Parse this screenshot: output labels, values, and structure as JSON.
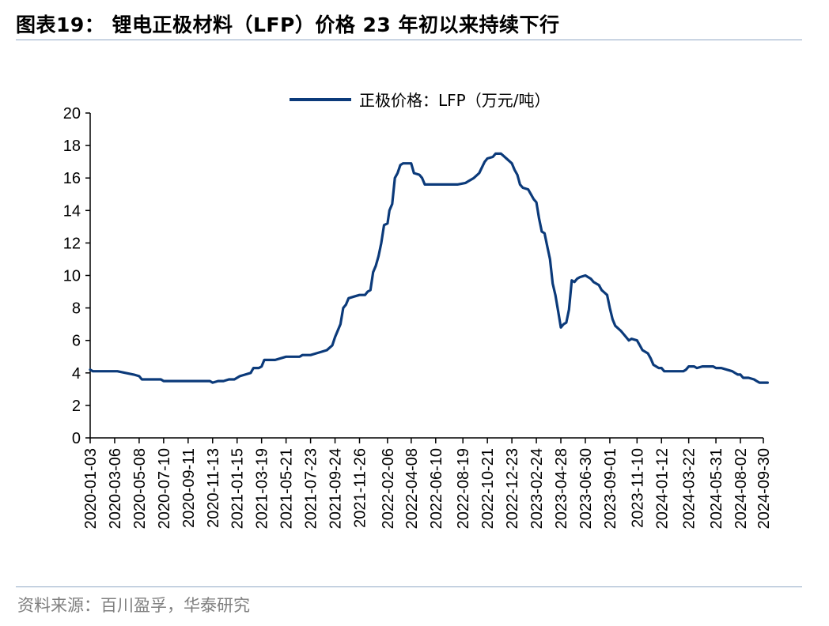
{
  "title": "图表19： 锂电正极材料（LFP）价格 23 年初以来持续下行",
  "source": "资料来源：百川盈孚，华泰研究",
  "colors": {
    "line": "#0b3a7a",
    "axis": "#000000",
    "rule": "#8fa7c4"
  },
  "chart_data": {
    "type": "line",
    "title": "",
    "xlabel": "",
    "ylabel": "",
    "ylim": [
      0,
      20
    ],
    "yticks": [
      0,
      2,
      4,
      6,
      8,
      10,
      12,
      14,
      16,
      18,
      20
    ],
    "grid": false,
    "legend_position": "top-center",
    "x_tick_labels": [
      "2020-01-03",
      "2020-03-06",
      "2020-05-08",
      "2020-07-10",
      "2020-09-11",
      "2020-11-13",
      "2021-01-15",
      "2021-03-19",
      "2021-05-21",
      "2021-07-23",
      "2021-09-24",
      "2021-11-26",
      "2022-02-06",
      "2022-04-08",
      "2022-06-10",
      "2022-08-19",
      "2022-10-21",
      "2022-12-23",
      "2023-02-24",
      "2023-04-28",
      "2023-06-30",
      "2023-09-01",
      "2023-11-10",
      "2024-01-12",
      "2024-03-22",
      "2024-05-31",
      "2024-08-02",
      "2024-09-30"
    ],
    "series": [
      {
        "name": "正极价格：LFP（万元/吨）",
        "points": [
          [
            "2020-01-03",
            4.2
          ],
          [
            "2020-01-10",
            4.1
          ],
          [
            "2020-02-14",
            4.1
          ],
          [
            "2020-03-13",
            4.1
          ],
          [
            "2020-04-03",
            4.0
          ],
          [
            "2020-04-24",
            3.9
          ],
          [
            "2020-05-08",
            3.8
          ],
          [
            "2020-05-15",
            3.6
          ],
          [
            "2020-06-12",
            3.6
          ],
          [
            "2020-07-03",
            3.6
          ],
          [
            "2020-07-10",
            3.5
          ],
          [
            "2020-08-07",
            3.5
          ],
          [
            "2020-09-04",
            3.5
          ],
          [
            "2020-10-09",
            3.5
          ],
          [
            "2020-11-06",
            3.5
          ],
          [
            "2020-11-13",
            3.4
          ],
          [
            "2020-11-27",
            3.5
          ],
          [
            "2020-12-11",
            3.5
          ],
          [
            "2020-12-25",
            3.6
          ],
          [
            "2021-01-08",
            3.6
          ],
          [
            "2021-01-22",
            3.8
          ],
          [
            "2021-02-05",
            3.9
          ],
          [
            "2021-02-19",
            4.0
          ],
          [
            "2021-02-26",
            4.3
          ],
          [
            "2021-03-12",
            4.3
          ],
          [
            "2021-03-19",
            4.4
          ],
          [
            "2021-03-26",
            4.8
          ],
          [
            "2021-04-09",
            4.8
          ],
          [
            "2021-04-23",
            4.8
          ],
          [
            "2021-05-07",
            4.9
          ],
          [
            "2021-05-21",
            5.0
          ],
          [
            "2021-06-04",
            5.0
          ],
          [
            "2021-06-25",
            5.0
          ],
          [
            "2021-07-02",
            5.1
          ],
          [
            "2021-07-23",
            5.1
          ],
          [
            "2021-08-06",
            5.2
          ],
          [
            "2021-08-20",
            5.3
          ],
          [
            "2021-09-03",
            5.4
          ],
          [
            "2021-09-17",
            5.7
          ],
          [
            "2021-09-24",
            6.2
          ],
          [
            "2021-10-08",
            7.0
          ],
          [
            "2021-10-15",
            8.0
          ],
          [
            "2021-10-22",
            8.2
          ],
          [
            "2021-10-29",
            8.6
          ],
          [
            "2021-11-12",
            8.7
          ],
          [
            "2021-11-26",
            8.8
          ],
          [
            "2021-12-10",
            8.8
          ],
          [
            "2021-12-17",
            9.0
          ],
          [
            "2021-12-24",
            9.1
          ],
          [
            "2021-12-31",
            10.2
          ],
          [
            "2022-01-07",
            10.6
          ],
          [
            "2022-01-14",
            11.2
          ],
          [
            "2022-01-21",
            12.0
          ],
          [
            "2022-01-28",
            13.1
          ],
          [
            "2022-02-06",
            13.2
          ],
          [
            "2022-02-11",
            14.0
          ],
          [
            "2022-02-18",
            14.4
          ],
          [
            "2022-02-25",
            16.0
          ],
          [
            "2022-03-04",
            16.3
          ],
          [
            "2022-03-11",
            16.8
          ],
          [
            "2022-03-18",
            16.9
          ],
          [
            "2022-04-01",
            16.9
          ],
          [
            "2022-04-08",
            16.9
          ],
          [
            "2022-04-15",
            16.3
          ],
          [
            "2022-04-29",
            16.2
          ],
          [
            "2022-05-06",
            16.0
          ],
          [
            "2022-05-13",
            15.6
          ],
          [
            "2022-06-10",
            15.6
          ],
          [
            "2022-07-08",
            15.6
          ],
          [
            "2022-08-05",
            15.6
          ],
          [
            "2022-08-26",
            15.7
          ],
          [
            "2022-09-02",
            15.8
          ],
          [
            "2022-09-16",
            16.0
          ],
          [
            "2022-09-30",
            16.3
          ],
          [
            "2022-10-14",
            17.0
          ],
          [
            "2022-10-21",
            17.2
          ],
          [
            "2022-11-04",
            17.3
          ],
          [
            "2022-11-11",
            17.5
          ],
          [
            "2022-11-25",
            17.5
          ],
          [
            "2022-12-09",
            17.2
          ],
          [
            "2022-12-23",
            16.9
          ],
          [
            "2022-12-30",
            16.5
          ],
          [
            "2023-01-06",
            16.2
          ],
          [
            "2023-01-13",
            15.6
          ],
          [
            "2023-01-20",
            15.4
          ],
          [
            "2023-02-03",
            15.3
          ],
          [
            "2023-02-10",
            15.0
          ],
          [
            "2023-02-17",
            14.7
          ],
          [
            "2023-02-24",
            14.5
          ],
          [
            "2023-03-03",
            13.5
          ],
          [
            "2023-03-10",
            12.7
          ],
          [
            "2023-03-17",
            12.6
          ],
          [
            "2023-03-24",
            11.8
          ],
          [
            "2023-03-31",
            11.0
          ],
          [
            "2023-04-07",
            9.5
          ],
          [
            "2023-04-14",
            8.8
          ],
          [
            "2023-04-21",
            7.8
          ],
          [
            "2023-04-28",
            6.8
          ],
          [
            "2023-05-05",
            7.0
          ],
          [
            "2023-05-12",
            7.1
          ],
          [
            "2023-05-19",
            7.9
          ],
          [
            "2023-05-26",
            9.7
          ],
          [
            "2023-06-02",
            9.6
          ],
          [
            "2023-06-09",
            9.8
          ],
          [
            "2023-06-16",
            9.9
          ],
          [
            "2023-06-30",
            10.0
          ],
          [
            "2023-07-14",
            9.8
          ],
          [
            "2023-07-21",
            9.6
          ],
          [
            "2023-08-04",
            9.4
          ],
          [
            "2023-08-11",
            9.1
          ],
          [
            "2023-08-25",
            8.8
          ],
          [
            "2023-09-01",
            8.0
          ],
          [
            "2023-09-08",
            7.3
          ],
          [
            "2023-09-15",
            6.9
          ],
          [
            "2023-09-29",
            6.6
          ],
          [
            "2023-10-13",
            6.2
          ],
          [
            "2023-10-20",
            6.0
          ],
          [
            "2023-10-27",
            6.1
          ],
          [
            "2023-11-10",
            6.0
          ],
          [
            "2023-11-17",
            5.7
          ],
          [
            "2023-11-24",
            5.4
          ],
          [
            "2023-12-08",
            5.2
          ],
          [
            "2023-12-15",
            4.9
          ],
          [
            "2023-12-22",
            4.5
          ],
          [
            "2024-01-05",
            4.3
          ],
          [
            "2024-01-12",
            4.3
          ],
          [
            "2024-01-19",
            4.1
          ],
          [
            "2024-02-09",
            4.1
          ],
          [
            "2024-02-23",
            4.1
          ],
          [
            "2024-03-08",
            4.1
          ],
          [
            "2024-03-15",
            4.2
          ],
          [
            "2024-03-22",
            4.4
          ],
          [
            "2024-04-05",
            4.4
          ],
          [
            "2024-04-12",
            4.3
          ],
          [
            "2024-04-26",
            4.4
          ],
          [
            "2024-05-10",
            4.4
          ],
          [
            "2024-05-24",
            4.4
          ],
          [
            "2024-05-31",
            4.3
          ],
          [
            "2024-06-14",
            4.3
          ],
          [
            "2024-06-28",
            4.2
          ],
          [
            "2024-07-12",
            4.1
          ],
          [
            "2024-07-19",
            4.0
          ],
          [
            "2024-07-26",
            3.9
          ],
          [
            "2024-08-02",
            3.9
          ],
          [
            "2024-08-09",
            3.7
          ],
          [
            "2024-08-23",
            3.7
          ],
          [
            "2024-09-06",
            3.6
          ],
          [
            "2024-09-13",
            3.5
          ],
          [
            "2024-09-20",
            3.4
          ],
          [
            "2024-09-27",
            3.4
          ],
          [
            "2024-10-04",
            3.4
          ],
          [
            "2024-10-11",
            3.4
          ]
        ]
      }
    ]
  }
}
